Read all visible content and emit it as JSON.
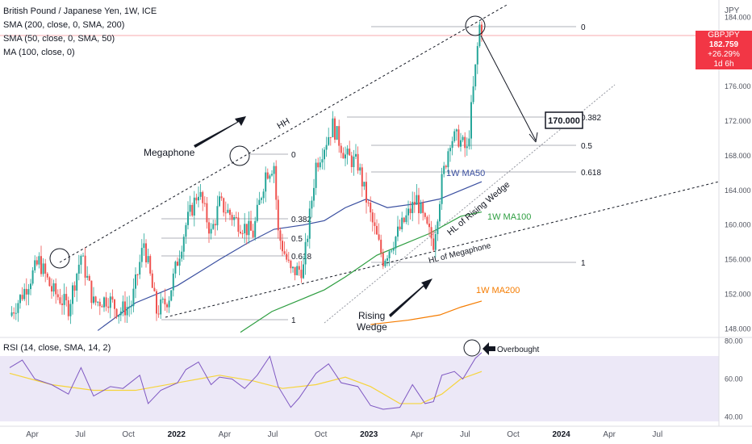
{
  "header": {
    "title": "British Pound / Japanese Yen, 1W, ICE",
    "indicators": [
      "SMA (200, close, 0, SMA, 200)",
      "SMA (50, close, 0, SMA, 50)",
      "MA (100, close, 0)"
    ],
    "rsi_label": "RSI (14, close, SMA, 14, 2)",
    "currency": "JPY"
  },
  "price_badge": {
    "symbol": "GBPJPY",
    "price": "182.759",
    "change": "+26.29%",
    "countdown": "1d 6h"
  },
  "colors": {
    "up": "#26a69a",
    "down": "#ef5350",
    "ma50": "#3a4fa0",
    "ma100": "#2e9e41",
    "ma200": "#f57c00",
    "rsi": "#7e57c2",
    "rsi_ma": "#f6d43b",
    "badge": "#f23645"
  },
  "chart_data": {
    "type": "candlestick",
    "x_axis": [
      "Apr",
      "Jul",
      "Oct",
      "2022",
      "Apr",
      "Jul",
      "Oct",
      "2023",
      "Apr",
      "Jul",
      "Oct",
      "2024",
      "Apr",
      "Jul"
    ],
    "y_ticks": [
      "184.000",
      "180.000",
      "176.000",
      "172.000",
      "168.000",
      "164.000",
      "160.000",
      "156.000",
      "152.000",
      "148.000"
    ],
    "ylim": [
      147,
      186
    ],
    "rsi_ticks": [
      "80.00",
      "60.00",
      "40.00"
    ],
    "rsi_ylim": [
      35,
      82
    ],
    "close_path": [
      [
        0,
        149.5
      ],
      [
        6,
        152
      ],
      [
        14,
        155.8
      ],
      [
        20,
        152.5
      ],
      [
        28,
        150.5
      ],
      [
        34,
        156.5
      ],
      [
        40,
        151
      ],
      [
        47,
        151.5
      ],
      [
        52,
        150
      ],
      [
        58,
        150.8
      ],
      [
        64,
        158
      ],
      [
        70,
        150
      ],
      [
        74,
        151
      ],
      [
        76,
        151.8
      ],
      [
        84,
        160
      ],
      [
        90,
        164
      ],
      [
        96,
        159
      ],
      [
        100,
        162.5
      ],
      [
        108,
        160.5
      ],
      [
        116,
        159
      ],
      [
        122,
        166
      ],
      [
        126,
        167
      ],
      [
        128,
        159
      ],
      [
        134,
        154.5
      ],
      [
        140,
        155
      ],
      [
        146,
        167
      ],
      [
        154,
        171.5
      ],
      [
        160,
        168
      ],
      [
        166,
        167
      ],
      [
        172,
        161
      ],
      [
        178,
        156
      ],
      [
        186,
        159.5
      ],
      [
        194,
        163
      ],
      [
        198,
        160
      ],
      [
        202,
        158
      ],
      [
        206,
        165
      ],
      [
        210,
        170
      ],
      [
        214,
        170
      ],
      [
        218,
        168.5
      ],
      [
        222,
        178
      ],
      [
        224,
        183
      ],
      [
        225,
        182.8
      ]
    ],
    "ma50": [
      [
        42,
        147.8
      ],
      [
        60,
        151
      ],
      [
        80,
        153
      ],
      [
        100,
        156
      ],
      [
        114,
        158
      ],
      [
        126,
        159.5
      ],
      [
        140,
        160
      ],
      [
        150,
        160.5
      ],
      [
        160,
        162
      ],
      [
        170,
        163
      ],
      [
        180,
        162
      ],
      [
        195,
        162.5
      ],
      [
        205,
        163
      ],
      [
        215,
        164
      ],
      [
        225,
        165
      ]
    ],
    "ma100": [
      [
        110,
        147.6
      ],
      [
        125,
        150
      ],
      [
        140,
        151.5
      ],
      [
        150,
        152.5
      ],
      [
        160,
        154
      ],
      [
        175,
        156.5
      ],
      [
        190,
        158
      ],
      [
        200,
        159
      ],
      [
        215,
        161
      ],
      [
        225,
        161.5
      ]
    ],
    "ma200": [
      [
        172,
        148.5
      ],
      [
        190,
        149
      ],
      [
        205,
        149.6
      ],
      [
        215,
        150.5
      ],
      [
        225,
        151.2
      ]
    ],
    "rsi": [
      [
        0,
        66
      ],
      [
        6,
        70
      ],
      [
        12,
        60
      ],
      [
        20,
        57
      ],
      [
        28,
        52
      ],
      [
        34,
        66
      ],
      [
        40,
        51
      ],
      [
        48,
        56
      ],
      [
        54,
        55
      ],
      [
        62,
        62
      ],
      [
        66,
        47
      ],
      [
        72,
        54
      ],
      [
        80,
        58
      ],
      [
        84,
        65
      ],
      [
        90,
        69
      ],
      [
        96,
        57
      ],
      [
        100,
        61
      ],
      [
        106,
        60
      ],
      [
        112,
        55
      ],
      [
        118,
        62
      ],
      [
        124,
        72
      ],
      [
        128,
        56
      ],
      [
        134,
        45
      ],
      [
        138,
        50
      ],
      [
        146,
        63
      ],
      [
        152,
        68
      ],
      [
        158,
        58
      ],
      [
        166,
        56
      ],
      [
        172,
        46
      ],
      [
        178,
        44
      ],
      [
        186,
        45
      ],
      [
        192,
        57
      ],
      [
        198,
        47
      ],
      [
        202,
        48
      ],
      [
        206,
        62
      ],
      [
        212,
        64
      ],
      [
        216,
        60
      ],
      [
        222,
        71
      ],
      [
        225,
        74
      ]
    ],
    "rsi_ma": [
      [
        0,
        63
      ],
      [
        20,
        57
      ],
      [
        40,
        54
      ],
      [
        60,
        54
      ],
      [
        80,
        58
      ],
      [
        100,
        62
      ],
      [
        116,
        59
      ],
      [
        130,
        55
      ],
      [
        146,
        57
      ],
      [
        160,
        61
      ],
      [
        172,
        56
      ],
      [
        186,
        47
      ],
      [
        196,
        47
      ],
      [
        206,
        52
      ],
      [
        215,
        60
      ],
      [
        225,
        64
      ]
    ],
    "annotations": {
      "megaphone": "Megaphone",
      "hh": "HH",
      "rising_wedge": [
        "Rising",
        "Wedge"
      ],
      "hl_rising_wedge": "HL of Rising Wedge",
      "hl_megaphone": "HL of Megaphone",
      "ma50_label": "1W MA50",
      "ma100_label": "1W MA100",
      "ma200_label": "1W MA200",
      "target": "170.000",
      "overbought": "Overbought",
      "fib_left": [
        "0",
        "0.382",
        "0.5",
        "0.618",
        "1"
      ],
      "fib_right": [
        "0",
        "0.382",
        "0.5",
        "0.618",
        "1"
      ]
    }
  }
}
